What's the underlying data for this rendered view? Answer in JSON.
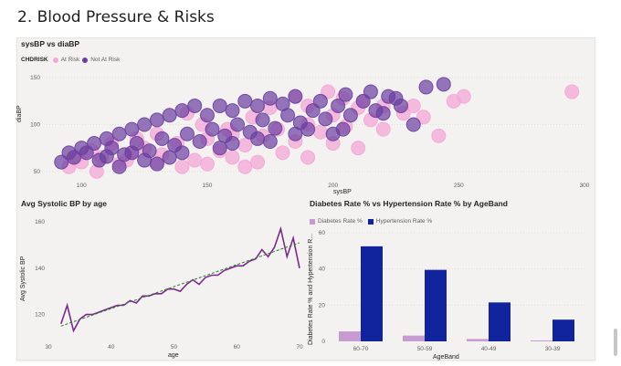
{
  "page": {
    "title": "2. Blood Pressure & Risks"
  },
  "scatter": {
    "title": "sysBP vs diaBP",
    "legend_title": "CHDRISK",
    "legend_items": [
      {
        "label": "At Risk",
        "color": "#f4a7d6"
      },
      {
        "label": "Not At Risk",
        "color": "#6b3fa0"
      }
    ],
    "xlabel": "sysBP",
    "ylabel": "diaBP"
  },
  "line": {
    "title": "Avg Systolic BP by age",
    "xlabel": "age",
    "ylabel": "Avg Systolic BP"
  },
  "bar": {
    "title": "Diabetes Rate % vs Hypertension Rate % by AgeBand",
    "legend_items": [
      {
        "label": "Diabetes Rate %",
        "color": "#c79ad1"
      },
      {
        "label": "Hypertension Rate %",
        "color": "#12239e"
      }
    ],
    "xlabel": "AgeBand",
    "ylabel": "Diabetes Rate % and Hypertension R..."
  },
  "chart_data": [
    {
      "type": "scatter",
      "title": "sysBP vs diaBP",
      "xlabel": "sysBP",
      "ylabel": "diaBP",
      "xlim": [
        85,
        300
      ],
      "ylim": [
        45,
        155
      ],
      "x_ticks": [
        100,
        150,
        200,
        250,
        300
      ],
      "y_ticks": [
        50,
        100,
        150
      ],
      "series": [
        {
          "name": "At Risk",
          "color": "#f4a7d6",
          "points": [
            [
              95,
              55
            ],
            [
              100,
              60
            ],
            [
              108,
              65
            ],
            [
              115,
              58
            ],
            [
              120,
              70
            ],
            [
              125,
              75
            ],
            [
              132,
              68
            ],
            [
              138,
              80
            ],
            [
              145,
              62
            ],
            [
              150,
              85
            ],
            [
              155,
              72
            ],
            [
              160,
              90
            ],
            [
              165,
              78
            ],
            [
              172,
              88
            ],
            [
              178,
              95
            ],
            [
              185,
              82
            ],
            [
              190,
              100
            ],
            [
              195,
              92
            ],
            [
              200,
              110
            ],
            [
              205,
              98
            ],
            [
              210,
              118
            ],
            [
              215,
              105
            ],
            [
              220,
              120
            ],
            [
              228,
              112
            ],
            [
              190,
              120
            ],
            [
              185,
              130
            ],
            [
              175,
              118
            ],
            [
              168,
              108
            ],
            [
              158,
              95
            ],
            [
              148,
              100
            ],
            [
              142,
              112
            ],
            [
              130,
              90
            ],
            [
              122,
              85
            ],
            [
              112,
              80
            ],
            [
              104,
              72
            ],
            [
              98,
              66
            ],
            [
              198,
              135
            ],
            [
              204,
              128
            ],
            [
              212,
              125
            ],
            [
              232,
              120
            ],
            [
              248,
              125
            ],
            [
              252,
              130
            ],
            [
              236,
              108
            ],
            [
              295,
              135
            ],
            [
              242,
              88
            ],
            [
              180,
              70
            ],
            [
              170,
              60
            ],
            [
              160,
              65
            ],
            [
              150,
              58
            ],
            [
              200,
              80
            ],
            [
              210,
              75
            ],
            [
              220,
              95
            ],
            [
              140,
              55
            ],
            [
              130,
              60
            ],
            [
              118,
              62
            ],
            [
              106,
              50
            ],
            [
              190,
              65
            ],
            [
              165,
              55
            ]
          ]
        },
        {
          "name": "Not At Risk",
          "color": "#6b3fa0",
          "points": [
            [
              92,
              60
            ],
            [
              97,
              65
            ],
            [
              102,
              70
            ],
            [
              107,
              62
            ],
            [
              112,
              75
            ],
            [
              117,
              68
            ],
            [
              122,
              80
            ],
            [
              127,
              72
            ],
            [
              132,
              85
            ],
            [
              137,
              78
            ],
            [
              142,
              90
            ],
            [
              147,
              82
            ],
            [
              152,
              95
            ],
            [
              157,
              88
            ],
            [
              162,
              100
            ],
            [
              167,
              92
            ],
            [
              172,
              105
            ],
            [
              177,
              96
            ],
            [
              182,
              110
            ],
            [
              187,
              102
            ],
            [
              192,
              115
            ],
            [
              197,
              106
            ],
            [
              202,
              120
            ],
            [
              207,
              110
            ],
            [
              212,
              125
            ],
            [
              217,
              115
            ],
            [
              222,
              130
            ],
            [
              227,
              120
            ],
            [
              110,
              85
            ],
            [
              115,
              90
            ],
            [
              120,
              95
            ],
            [
              125,
              100
            ],
            [
              130,
              105
            ],
            [
              135,
              110
            ],
            [
              140,
              115
            ],
            [
              145,
              120
            ],
            [
              150,
              110
            ],
            [
              155,
              120
            ],
            [
              160,
              115
            ],
            [
              165,
              125
            ],
            [
              170,
              120
            ],
            [
              175,
              128
            ],
            [
              180,
              122
            ],
            [
              185,
              130
            ],
            [
              195,
              125
            ],
            [
              205,
              132
            ],
            [
              215,
              135
            ],
            [
              225,
              128
            ],
            [
              237,
              140
            ],
            [
              244,
              143
            ],
            [
              220,
              112
            ],
            [
              232,
              100
            ],
            [
              204,
              95
            ],
            [
              200,
              90
            ],
            [
              95,
              70
            ],
            [
              100,
              75
            ],
            [
              105,
              80
            ],
            [
              140,
              70
            ],
            [
              135,
              65
            ],
            [
              130,
              58
            ],
            [
              125,
              62
            ],
            [
              115,
              55
            ],
            [
              155,
              75
            ],
            [
              160,
              80
            ],
            [
              170,
              85
            ],
            [
              175,
              82
            ],
            [
              185,
              90
            ],
            [
              190,
              95
            ],
            [
              120,
              70
            ],
            [
              110,
              66
            ]
          ]
        }
      ]
    },
    {
      "type": "line",
      "title": "Avg Systolic BP by age",
      "xlabel": "age",
      "ylabel": "Avg Systolic BP",
      "xlim": [
        30,
        70
      ],
      "ylim": [
        110,
        162
      ],
      "x_ticks": [
        30,
        40,
        50,
        60,
        70
      ],
      "y_ticks": [
        120,
        140,
        160
      ],
      "x": [
        32,
        33,
        34,
        35,
        36,
        37,
        38,
        39,
        40,
        41,
        42,
        43,
        44,
        45,
        46,
        47,
        48,
        49,
        50,
        51,
        52,
        53,
        54,
        55,
        56,
        57,
        58,
        59,
        60,
        61,
        62,
        63,
        64,
        65,
        66,
        67,
        68,
        69,
        70
      ],
      "series": [
        {
          "name": "Avg Systolic BP",
          "color": "#7b2a8c",
          "values": [
            116,
            124,
            113,
            118,
            120,
            120,
            121,
            122,
            123,
            124,
            124,
            126,
            125,
            128,
            128,
            129,
            129,
            131,
            131,
            130,
            133,
            135,
            133,
            136,
            137,
            137,
            139,
            140,
            141,
            141,
            143,
            144,
            148,
            145,
            149,
            157,
            145,
            153,
            140
          ]
        }
      ],
      "trendline": {
        "color": "#2e7d32",
        "style": "dashed",
        "from": [
          32,
          115
        ],
        "to": [
          70,
          151
        ]
      }
    },
    {
      "type": "bar",
      "title": "Diabetes Rate % vs Hypertension Rate % by AgeBand",
      "xlabel": "AgeBand",
      "ylabel": "Diabetes Rate % and Hypertension R...",
      "ylim": [
        0,
        60
      ],
      "y_ticks": [
        0,
        20,
        40,
        60
      ],
      "categories": [
        "60-70",
        "50-59",
        "40-49",
        "30-39"
      ],
      "series": [
        {
          "name": "Diabetes Rate %",
          "color": "#c79ad1",
          "values": [
            5.5,
            3.2,
            1.3,
            0.5
          ]
        },
        {
          "name": "Hypertension Rate %",
          "color": "#12239e",
          "values": [
            52.5,
            39.5,
            21.5,
            12
          ]
        }
      ]
    }
  ]
}
